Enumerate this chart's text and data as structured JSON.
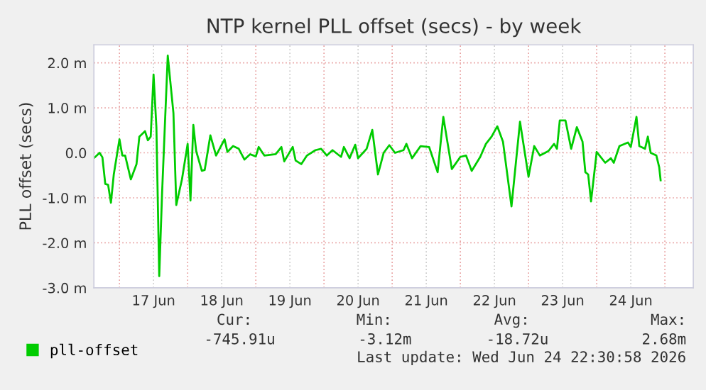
{
  "chart_data": {
    "type": "line",
    "title": "NTP kernel PLL offset (secs) - by week",
    "ylabel": "PLL offset (secs)",
    "xlim": [
      "2026-06-16T15:00",
      "2026-06-25T10:00"
    ],
    "xticks": [
      {
        "value": "2026-06-17T00:00",
        "label": null
      },
      {
        "value": "2026-06-17T12:00",
        "label": "17 Jun"
      },
      {
        "value": "2026-06-18T00:00",
        "label": null
      },
      {
        "value": "2026-06-18T12:00",
        "label": "18 Jun"
      },
      {
        "value": "2026-06-19T00:00",
        "label": null
      },
      {
        "value": "2026-06-19T12:00",
        "label": "19 Jun"
      },
      {
        "value": "2026-06-20T00:00",
        "label": null
      },
      {
        "value": "2026-06-20T12:00",
        "label": "20 Jun"
      },
      {
        "value": "2026-06-21T00:00",
        "label": null
      },
      {
        "value": "2026-06-21T12:00",
        "label": "21 Jun"
      },
      {
        "value": "2026-06-22T00:00",
        "label": null
      },
      {
        "value": "2026-06-22T12:00",
        "label": "22 Jun"
      },
      {
        "value": "2026-06-23T00:00",
        "label": null
      },
      {
        "value": "2026-06-23T12:00",
        "label": "23 Jun"
      },
      {
        "value": "2026-06-24T00:00",
        "label": null
      },
      {
        "value": "2026-06-24T12:00",
        "label": "24 Jun"
      },
      {
        "value": "2026-06-25T00:00",
        "label": null
      }
    ],
    "ylim": [
      -3.0,
      2.4
    ],
    "yticks": [
      {
        "value": -3,
        "label": "-3.0 m"
      },
      {
        "value": -2,
        "label": "-2.0 m"
      },
      {
        "value": -1,
        "label": "-1.0 m"
      },
      {
        "value": 0,
        "label": "0.0"
      },
      {
        "value": 1,
        "label": "1.0 m"
      },
      {
        "value": 2,
        "label": "2.0 m"
      }
    ],
    "grid": true,
    "legend": "bottom",
    "marker": "none",
    "line_style": "solid",
    "x": [
      "2026-06-16T15:00",
      "2026-06-16T17:00",
      "2026-06-16T18:00",
      "2026-06-16T19:00",
      "2026-06-16T20:00",
      "2026-06-16T21:00",
      "2026-06-16T22:00",
      "2026-06-17T00:00",
      "2026-06-17T01:00",
      "2026-06-17T02:00",
      "2026-06-17T04:00",
      "2026-06-17T06:00",
      "2026-06-17T07:00",
      "2026-06-17T09:00",
      "2026-06-17T10:00",
      "2026-06-17T11:00",
      "2026-06-17T12:00",
      "2026-06-17T13:00",
      "2026-06-17T14:00",
      "2026-06-17T15:00",
      "2026-06-17T17:00",
      "2026-06-17T19:00",
      "2026-06-17T20:00",
      "2026-06-17T22:00",
      "2026-06-18T00:00",
      "2026-06-18T01:00",
      "2026-06-18T02:00",
      "2026-06-18T03:00",
      "2026-06-18T05:00",
      "2026-06-18T06:00",
      "2026-06-18T08:00",
      "2026-06-18T10:00",
      "2026-06-18T13:00",
      "2026-06-18T14:00",
      "2026-06-18T16:00",
      "2026-06-18T18:00",
      "2026-06-18T20:00",
      "2026-06-18T22:00",
      "2026-06-19T00:00",
      "2026-06-19T01:00",
      "2026-06-19T03:00",
      "2026-06-19T07:00",
      "2026-06-19T09:00",
      "2026-06-19T10:00",
      "2026-06-19T13:00",
      "2026-06-19T14:00",
      "2026-06-19T16:00",
      "2026-06-19T18:00",
      "2026-06-19T21:00",
      "2026-06-19T23:00",
      "2026-06-20T01:00",
      "2026-06-20T03:00",
      "2026-06-20T06:00",
      "2026-06-20T07:00",
      "2026-06-20T09:00",
      "2026-06-20T11:00",
      "2026-06-20T12:00",
      "2026-06-20T15:00",
      "2026-06-20T17:00",
      "2026-06-20T19:00",
      "2026-06-20T21:00",
      "2026-06-20T23:00",
      "2026-06-21T01:00",
      "2026-06-21T04:00",
      "2026-06-21T05:00",
      "2026-06-21T07:00",
      "2026-06-21T10:00",
      "2026-06-21T13:00",
      "2026-06-21T16:00",
      "2026-06-21T18:00",
      "2026-06-21T21:00",
      "2026-06-22T00:00",
      "2026-06-22T02:00",
      "2026-06-22T04:00",
      "2026-06-22T07:00",
      "2026-06-22T09:00",
      "2026-06-22T11:00",
      "2026-06-22T13:00",
      "2026-06-22T15:00",
      "2026-06-22T18:00",
      "2026-06-22T21:00",
      "2026-06-23T00:00",
      "2026-06-23T02:00",
      "2026-06-23T04:00",
      "2026-06-23T07:00",
      "2026-06-23T09:00",
      "2026-06-23T10:00",
      "2026-06-23T11:00",
      "2026-06-23T13:00",
      "2026-06-23T15:00",
      "2026-06-23T17:00",
      "2026-06-23T19:00",
      "2026-06-23T20:00",
      "2026-06-23T21:00",
      "2026-06-23T22:00",
      "2026-06-24T00:00",
      "2026-06-24T03:00",
      "2026-06-24T05:00",
      "2026-06-24T06:00",
      "2026-06-24T08:00",
      "2026-06-24T11:00",
      "2026-06-24T12:00",
      "2026-06-24T14:00",
      "2026-06-24T15:00",
      "2026-06-24T17:00",
      "2026-06-24T18:00",
      "2026-06-24T19:00",
      "2026-06-24T21:00",
      "2026-06-24T22:00",
      "2026-06-24T22:30"
    ],
    "series": [
      {
        "name": "pll-offset",
        "color": "#00cc00",
        "values": [
          -0.12,
          0,
          -0.1,
          -0.69,
          -0.71,
          -1.11,
          -0.48,
          0.3,
          -0.06,
          -0.06,
          -0.59,
          -0.25,
          0.36,
          0.48,
          0.28,
          0.36,
          1.74,
          0.57,
          -2.74,
          -0.9,
          2.16,
          0.88,
          -1.16,
          -0.59,
          0.2,
          -1.06,
          0.62,
          0.04,
          -0.4,
          -0.38,
          0.39,
          -0.06,
          0.3,
          0.02,
          0.15,
          0.09,
          -0.15,
          -0.03,
          -0.08,
          0.13,
          -0.06,
          -0.03,
          0.13,
          -0.19,
          0.13,
          -0.17,
          -0.25,
          -0.06,
          0.06,
          0.09,
          -0.06,
          0.06,
          -0.09,
          0.13,
          -0.12,
          0.18,
          -0.12,
          0.09,
          0.51,
          -0.48,
          0,
          0.17,
          0,
          0.06,
          0.2,
          -0.12,
          0.15,
          0.13,
          -0.43,
          0.8,
          -0.36,
          -0.09,
          -0.06,
          -0.4,
          -0.09,
          0.2,
          0.36,
          0.59,
          0.25,
          -1.19,
          0.69,
          -0.53,
          0.15,
          -0.06,
          0.04,
          0.2,
          0.09,
          0.72,
          0.72,
          0.09,
          0.57,
          0.25,
          -0.43,
          -0.48,
          -1.08,
          0.02,
          -0.22,
          -0.12,
          -0.22,
          0.15,
          0.23,
          0.13,
          0.8,
          0.15,
          0.09,
          0.36,
          0,
          -0.06,
          -0.32,
          -0.61
        ]
      }
    ],
    "annotations": [
      "Cur:",
      "Min:",
      "Avg:",
      "Max:",
      "-745.91u",
      "-3.12m",
      "-18.72u",
      "2.68m",
      "Last update: Wed Jun 24 22:30:58 2026"
    ]
  }
}
